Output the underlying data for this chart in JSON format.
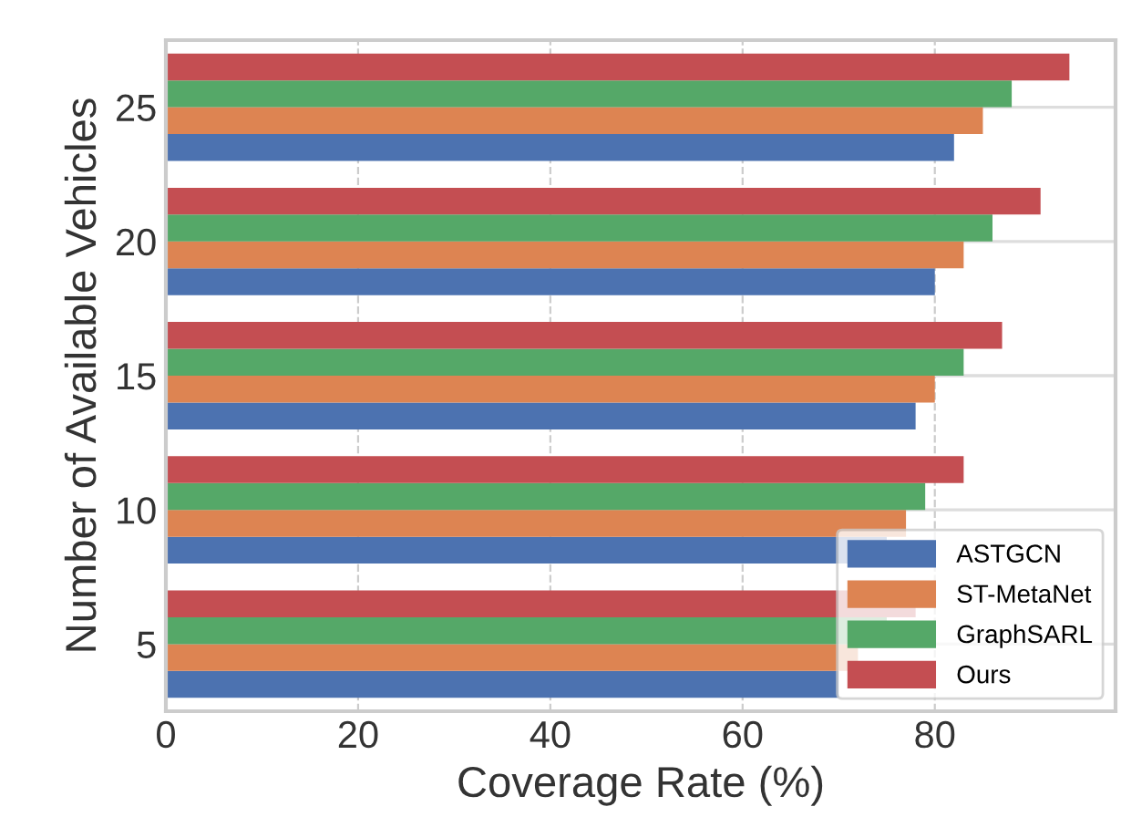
{
  "chart_data": {
    "type": "bar",
    "orientation": "horizontal",
    "xlabel": "Coverage Rate (%)",
    "ylabel": "Number of Available Vehicles",
    "categories": [
      "25",
      "20",
      "15",
      "10",
      "5"
    ],
    "series": [
      {
        "name": "ASTGCN",
        "color": "#4c72b0",
        "values": [
          82,
          80,
          78,
          75,
          70
        ]
      },
      {
        "name": "ST-MetaNet",
        "color": "#dd8452",
        "values": [
          85,
          83,
          80,
          77,
          72
        ]
      },
      {
        "name": "GraphSARL",
        "color": "#55a868",
        "values": [
          88,
          86,
          83,
          79,
          75
        ]
      },
      {
        "name": "Ours",
        "color": "#c44e52",
        "values": [
          94,
          91,
          87,
          83,
          78
        ]
      }
    ],
    "xlim": [
      0,
      98.8
    ],
    "xticks": [
      0,
      20,
      40,
      60,
      80
    ],
    "grid": true,
    "legend": "bottom right"
  }
}
